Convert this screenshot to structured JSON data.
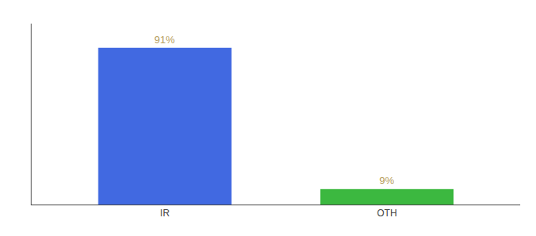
{
  "chart_data": {
    "type": "bar",
    "categories": [
      "IR",
      "OTH"
    ],
    "values": [
      91,
      9
    ],
    "value_labels": [
      "91%",
      "9%"
    ],
    "data_labels": true,
    "colors": [
      "#4169e1",
      "#3cb840"
    ],
    "ylim": [
      0,
      105
    ],
    "yticks": [],
    "tick_labels": "x",
    "grid": false
  }
}
